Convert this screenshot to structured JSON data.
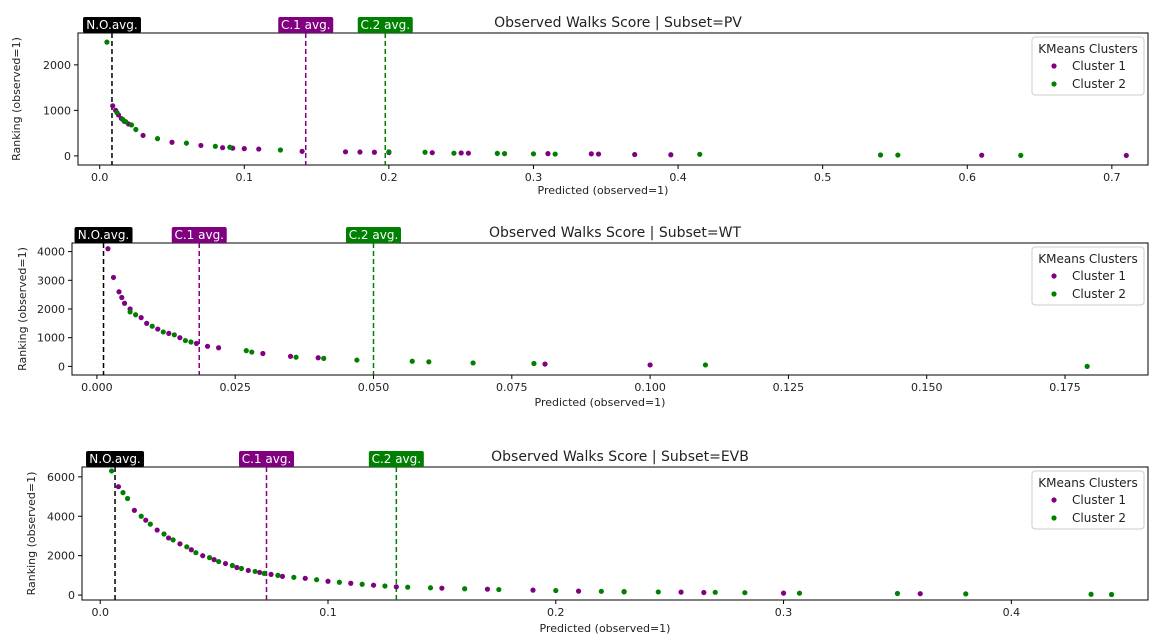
{
  "chart_data": [
    {
      "type": "scatter",
      "title": "Observed Walks Score | Subset=PV",
      "xlabel": "Predicted (observed=1)",
      "ylabel": "Ranking (observed=1)",
      "xlim": [
        -0.015,
        0.725
      ],
      "ylim": [
        -200,
        2700
      ],
      "xticks": [
        0,
        0.1,
        0.2,
        0.3,
        0.4,
        0.5,
        0.6,
        0.7
      ],
      "xtick_labels": [
        "0.0",
        "0.1",
        "0.2",
        "0.3",
        "0.4",
        "0.5",
        "0.6",
        "0.7"
      ],
      "yticks": [
        0,
        1000,
        2000
      ],
      "ytick_labels": [
        "0",
        "1000",
        "2000"
      ],
      "legend": {
        "title": "KMeans Clusters",
        "placement": "top-right"
      },
      "avg_lines": [
        {
          "label": "N.O.avg.",
          "x": 0.0085,
          "color": "#000000"
        },
        {
          "label": "C.1 avg.",
          "x": 0.1425,
          "color": "#800080"
        },
        {
          "label": "C.2 avg.",
          "x": 0.1975,
          "color": "#008000"
        }
      ],
      "series": [
        {
          "name": "Cluster 1",
          "color": "#800080",
          "points": [
            [
              0.009,
              1100
            ],
            [
              0.011,
              1000
            ],
            [
              0.013,
              900
            ],
            [
              0.015,
              820
            ],
            [
              0.017,
              760
            ],
            [
              0.02,
              700
            ],
            [
              0.03,
              450
            ],
            [
              0.05,
              300
            ],
            [
              0.07,
              230
            ],
            [
              0.085,
              180
            ],
            [
              0.092,
              170
            ],
            [
              0.1,
              160
            ],
            [
              0.11,
              150
            ],
            [
              0.14,
              100
            ],
            [
              0.17,
              90
            ],
            [
              0.18,
              85
            ],
            [
              0.19,
              80
            ],
            [
              0.2,
              75
            ],
            [
              0.23,
              70
            ],
            [
              0.25,
              65
            ],
            [
              0.255,
              60
            ],
            [
              0.31,
              50
            ],
            [
              0.34,
              45
            ],
            [
              0.345,
              40
            ],
            [
              0.37,
              30
            ],
            [
              0.395,
              25
            ],
            [
              0.61,
              15
            ],
            [
              0.71,
              10
            ]
          ]
        },
        {
          "name": "Cluster 2",
          "color": "#008000",
          "points": [
            [
              0.005,
              2500
            ],
            [
              0.012,
              950
            ],
            [
              0.016,
              800
            ],
            [
              0.018,
              750
            ],
            [
              0.022,
              680
            ],
            [
              0.025,
              580
            ],
            [
              0.04,
              380
            ],
            [
              0.06,
              280
            ],
            [
              0.08,
              210
            ],
            [
              0.09,
              190
            ],
            [
              0.125,
              130
            ],
            [
              0.2,
              90
            ],
            [
              0.225,
              80
            ],
            [
              0.245,
              60
            ],
            [
              0.275,
              55
            ],
            [
              0.28,
              50
            ],
            [
              0.3,
              45
            ],
            [
              0.315,
              40
            ],
            [
              0.415,
              35
            ],
            [
              0.54,
              20
            ],
            [
              0.552,
              18
            ],
            [
              0.637,
              12
            ]
          ]
        }
      ]
    },
    {
      "type": "scatter",
      "title": "Observed Walks Score | Subset=WT",
      "xlabel": "Predicted (observed=1)",
      "ylabel": "Ranking (observed=1)",
      "xlim": [
        -0.0045,
        0.19
      ],
      "ylim": [
        -300,
        4300
      ],
      "xticks": [
        0,
        0.025,
        0.05,
        0.075,
        0.1,
        0.125,
        0.15,
        0.175
      ],
      "xtick_labels": [
        "0.000",
        "0.025",
        "0.050",
        "0.075",
        "0.100",
        "0.125",
        "0.150",
        "0.175"
      ],
      "yticks": [
        0,
        1000,
        2000,
        3000,
        4000
      ],
      "ytick_labels": [
        "0",
        "1000",
        "2000",
        "3000",
        "4000"
      ],
      "legend": {
        "title": "KMeans Clusters",
        "placement": "top-right"
      },
      "avg_lines": [
        {
          "label": "N.O.avg.",
          "x": 0.0012,
          "color": "#000000"
        },
        {
          "label": "C.1 avg.",
          "x": 0.0185,
          "color": "#800080"
        },
        {
          "label": "C.2 avg.",
          "x": 0.05,
          "color": "#008000"
        }
      ],
      "series": [
        {
          "name": "Cluster 1",
          "color": "#800080",
          "points": [
            [
              0.002,
              4100
            ],
            [
              0.003,
              3100
            ],
            [
              0.004,
              2600
            ],
            [
              0.0045,
              2400
            ],
            [
              0.005,
              2200
            ],
            [
              0.006,
              2000
            ],
            [
              0.008,
              1700
            ],
            [
              0.009,
              1500
            ],
            [
              0.011,
              1300
            ],
            [
              0.013,
              1150
            ],
            [
              0.015,
              1000
            ],
            [
              0.018,
              800
            ],
            [
              0.02,
              700
            ],
            [
              0.022,
              650
            ],
            [
              0.03,
              450
            ],
            [
              0.035,
              350
            ],
            [
              0.04,
              300
            ],
            [
              0.081,
              80
            ],
            [
              0.1,
              50
            ]
          ]
        },
        {
          "name": "Cluster 2",
          "color": "#008000",
          "points": [
            [
              0.006,
              1900
            ],
            [
              0.007,
              1800
            ],
            [
              0.01,
              1400
            ],
            [
              0.012,
              1200
            ],
            [
              0.014,
              1100
            ],
            [
              0.016,
              900
            ],
            [
              0.017,
              850
            ],
            [
              0.027,
              550
            ],
            [
              0.028,
              500
            ],
            [
              0.036,
              320
            ],
            [
              0.041,
              280
            ],
            [
              0.047,
              220
            ],
            [
              0.057,
              180
            ],
            [
              0.06,
              160
            ],
            [
              0.068,
              120
            ],
            [
              0.079,
              100
            ],
            [
              0.11,
              50
            ],
            [
              0.179,
              0
            ]
          ]
        }
      ]
    },
    {
      "type": "scatter",
      "title": "Observed Walks Score | Subset=EVB",
      "xlabel": "Predicted (observed=1)",
      "ylabel": "Ranking (observed=1)",
      "xlim": [
        -0.008,
        0.46
      ],
      "ylim": [
        -250,
        6500
      ],
      "xticks": [
        0,
        0.1,
        0.2,
        0.3,
        0.4
      ],
      "xtick_labels": [
        "0.0",
        "0.1",
        "0.2",
        "0.3",
        "0.4"
      ],
      "yticks": [
        0,
        2000,
        4000,
        6000
      ],
      "ytick_labels": [
        "0",
        "2000",
        "4000",
        "6000"
      ],
      "legend": {
        "title": "KMeans Clusters",
        "placement": "top-right"
      },
      "avg_lines": [
        {
          "label": "N.O.avg.",
          "x": 0.0065,
          "color": "#000000"
        },
        {
          "label": "C.1 avg.",
          "x": 0.073,
          "color": "#800080"
        },
        {
          "label": "C.2 avg.",
          "x": 0.13,
          "color": "#008000"
        }
      ],
      "series": [
        {
          "name": "Cluster 1",
          "color": "#800080",
          "points": [
            [
              0.008,
              5500
            ],
            [
              0.015,
              4300
            ],
            [
              0.02,
              3800
            ],
            [
              0.025,
              3300
            ],
            [
              0.03,
              2900
            ],
            [
              0.035,
              2600
            ],
            [
              0.04,
              2300
            ],
            [
              0.045,
              2000
            ],
            [
              0.05,
              1800
            ],
            [
              0.055,
              1600
            ],
            [
              0.06,
              1400
            ],
            [
              0.065,
              1250
            ],
            [
              0.07,
              1150
            ],
            [
              0.075,
              1050
            ],
            [
              0.08,
              950
            ],
            [
              0.09,
              850
            ],
            [
              0.1,
              700
            ],
            [
              0.11,
              600
            ],
            [
              0.12,
              500
            ],
            [
              0.13,
              420
            ],
            [
              0.15,
              350
            ],
            [
              0.17,
              300
            ],
            [
              0.19,
              250
            ],
            [
              0.21,
              200
            ],
            [
              0.23,
              170
            ],
            [
              0.255,
              150
            ],
            [
              0.265,
              130
            ],
            [
              0.3,
              100
            ],
            [
              0.36,
              70
            ]
          ]
        },
        {
          "name": "Cluster 2",
          "color": "#008000",
          "points": [
            [
              0.005,
              6300
            ],
            [
              0.01,
              5200
            ],
            [
              0.012,
              4900
            ],
            [
              0.018,
              4000
            ],
            [
              0.022,
              3600
            ],
            [
              0.028,
              3100
            ],
            [
              0.032,
              2800
            ],
            [
              0.038,
              2450
            ],
            [
              0.042,
              2150
            ],
            [
              0.048,
              1900
            ],
            [
              0.052,
              1700
            ],
            [
              0.058,
              1500
            ],
            [
              0.062,
              1350
            ],
            [
              0.068,
              1200
            ],
            [
              0.072,
              1100
            ],
            [
              0.078,
              1000
            ],
            [
              0.085,
              900
            ],
            [
              0.095,
              780
            ],
            [
              0.105,
              650
            ],
            [
              0.115,
              550
            ],
            [
              0.125,
              460
            ],
            [
              0.135,
              400
            ],
            [
              0.145,
              370
            ],
            [
              0.16,
              320
            ],
            [
              0.175,
              280
            ],
            [
              0.2,
              230
            ],
            [
              0.22,
              190
            ],
            [
              0.23,
              175
            ],
            [
              0.245,
              160
            ],
            [
              0.27,
              140
            ],
            [
              0.283,
              120
            ],
            [
              0.307,
              95
            ],
            [
              0.35,
              80
            ],
            [
              0.38,
              60
            ],
            [
              0.435,
              40
            ],
            [
              0.444,
              30
            ]
          ]
        }
      ]
    }
  ]
}
